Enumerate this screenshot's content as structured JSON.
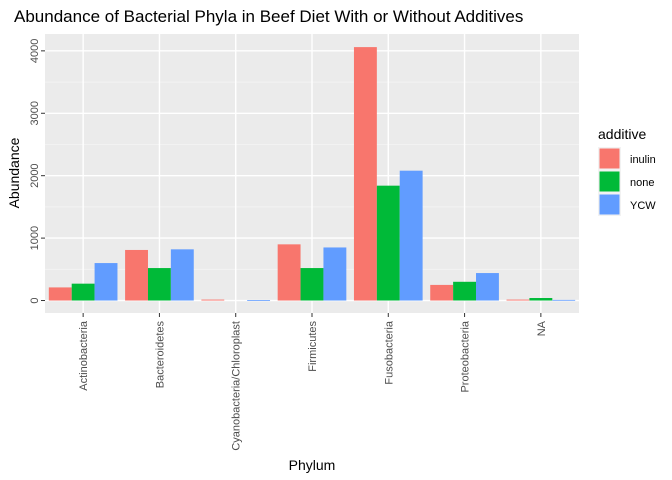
{
  "chart_data": {
    "type": "bar",
    "title": "Abundance of Bacterial Phyla in Beef Diet With or Without Additives",
    "xlabel": "Phylum",
    "ylabel": "Abundance",
    "categories": [
      "Actinobacteria",
      "Bacteroidetes",
      "Cyanobacteria/Chloroplast",
      "Firmicutes",
      "Fusobacteria",
      "Proteobacteria",
      "NA"
    ],
    "series": [
      {
        "name": "inulin",
        "color": "#F8766D",
        "values": [
          210,
          810,
          15,
          900,
          4060,
          250,
          15
        ]
      },
      {
        "name": "none",
        "color": "#00BA38",
        "values": [
          270,
          520,
          0,
          520,
          1840,
          300,
          40
        ]
      },
      {
        "name": "YCW",
        "color": "#619CFF",
        "values": [
          600,
          820,
          5,
          850,
          2080,
          440,
          10
        ]
      }
    ],
    "yticks": [
      0,
      1000,
      2000,
      3000,
      4000
    ],
    "ylim": [
      -200,
      4270
    ],
    "grid": true,
    "legend": {
      "title": "additive",
      "position": "right"
    },
    "background": "#EBEBEB",
    "grid_color": "#FFFFFF"
  }
}
